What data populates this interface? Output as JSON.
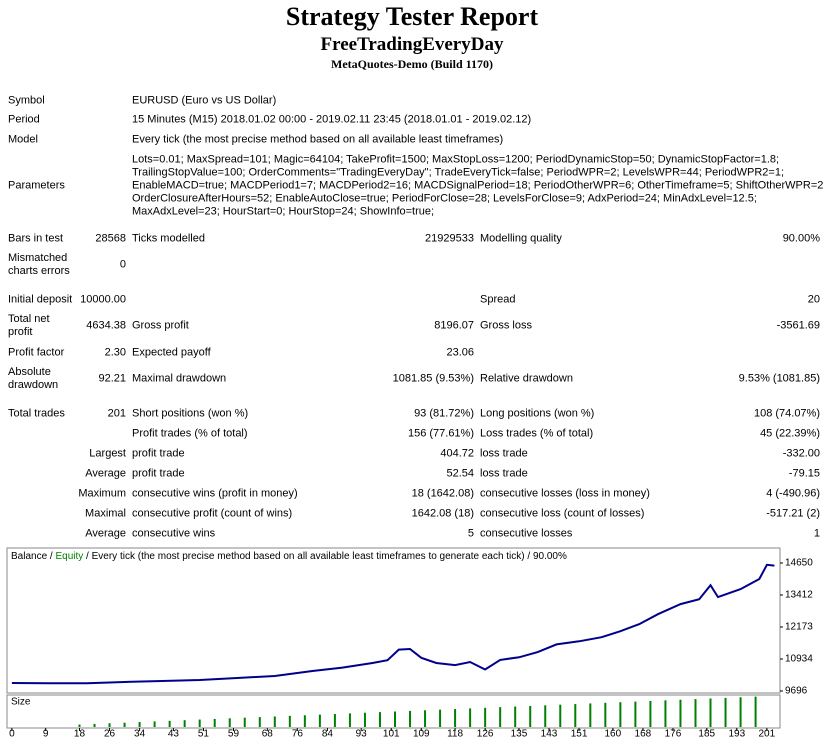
{
  "header": {
    "title": "Strategy Tester Report",
    "subtitle": "FreeTradingEveryDay",
    "build": "MetaQuotes-Demo (Build 1170)"
  },
  "rows": [
    [
      "Symbol",
      "EURUSD (Euro vs US Dollar)"
    ],
    [
      "Period",
      "15 Minutes (M15) 2018.01.02 00:00 - 2019.02.11 23:45 (2018.01.01 - 2019.02.12)"
    ],
    [
      "Model",
      "Every tick (the most precise method based on all available least timeframes)"
    ],
    [
      "Parameters",
      "Lots=0.01; MaxSpread=101; Magic=64104; TakeProfit=1500; MaxStopLoss=1200; PeriodDynamicStop=50; DynamicStopFactor=1.8;",
      "TrailingStopValue=100; OrderComments=\"TradingEveryDay\"; TradeEveryTick=false; PeriodWPR=2; LevelsWPR=44; PeriodWPR2=1;",
      "EnableMACD=true; MACDPeriod1=7; MACDPeriod2=16; MACDSignalPeriod=18; PeriodOtherWPR=6; OtherTimeframe=5; ShiftOtherWPR=2;",
      "OrderClosureAfterHours=52; EnableAutoClose=true; PeriodForClose=28; LevelsForClose=9; AdxPeriod=24; MinAdxLevel=12.5;",
      "MaxAdxLevel=23; HourStart=0; HourStop=24; ShowInfo=true;"
    ],
    [
      "Bars in test",
      "28568",
      "Ticks modelled",
      "21929533",
      "Modelling quality",
      "90.00%"
    ],
    [
      "Mismatched charts errors",
      "0"
    ],
    [
      "Initial deposit",
      "10000.00",
      "Spread",
      "20"
    ],
    [
      "Total net profit",
      "4634.38",
      "Gross profit",
      "8196.07",
      "Gross loss",
      "-3561.69"
    ],
    [
      "Profit factor",
      "2.30",
      "Expected payoff",
      "23.06"
    ],
    [
      "Absolute drawdown",
      "92.21",
      "Maximal drawdown",
      "1081.85 (9.53%)",
      "Relative drawdown",
      "9.53% (1081.85)"
    ],
    [
      "Total trades",
      "201",
      "Short positions (won %)",
      "93 (81.72%)",
      "Long positions (won %)",
      "108 (74.07%)"
    ],
    [
      "Profit trades (% of total)",
      "156 (77.61%)",
      "Loss trades (% of total)",
      "45 (22.39%)"
    ],
    [
      "Largest",
      "profit trade",
      "404.72",
      "loss trade",
      "-332.00"
    ],
    [
      "Average",
      "profit trade",
      "52.54",
      "loss trade",
      "-79.15"
    ],
    [
      "Maximum",
      "consecutive wins (profit in money)",
      "18 (1642.08)",
      "consecutive losses (loss in money)",
      "4 (-490.96)"
    ],
    [
      "Maximal",
      "consecutive profit (count of wins)",
      "1642.08 (18)",
      "consecutive loss (count of losses)",
      "-517.21 (2)"
    ],
    [
      "Average",
      "consecutive wins",
      "5",
      "consecutive losses",
      "1"
    ]
  ],
  "chart": {
    "type": "line",
    "legend": [
      "Balance",
      "Equity"
    ],
    "separator": " / ",
    "model": "Every tick (the most precise method based on all available least timeframes to generate each tick)",
    "quality": "90.00%",
    "color": "#00008b",
    "equity_color": "#008000",
    "x": [
      0,
      10,
      20,
      30,
      40,
      50,
      60,
      70,
      80,
      88,
      96,
      100,
      103,
      106,
      109,
      113,
      118,
      122,
      126,
      130,
      135,
      140,
      145,
      151,
      157,
      162,
      167,
      172,
      178,
      183,
      186,
      188,
      194,
      199,
      201,
      203
    ],
    "values": [
      10006,
      10000,
      10000,
      10045,
      10083,
      10122,
      10199,
      10277,
      10470,
      10600,
      10780,
      10890,
      11300,
      11320,
      10980,
      10780,
      10700,
      10820,
      10530,
      10900,
      11000,
      11200,
      11500,
      11620,
      11780,
      12010,
      12280,
      12670,
      13060,
      13250,
      13790,
      13330,
      13640,
      14030,
      14580,
      14550
    ],
    "xlim": [
      -1.3,
      204.5
    ],
    "ylim": [
      9619,
      15230
    ],
    "yticks": [
      9696,
      10934,
      12173,
      13412,
      14650
    ],
    "xticks": [
      0,
      9,
      18,
      26,
      34,
      43,
      51,
      59,
      68,
      76,
      84,
      93,
      101,
      109,
      118,
      126,
      135,
      143,
      151,
      160,
      168,
      176,
      185,
      193,
      201
    ],
    "size_label": "Size",
    "size_color": "#008000",
    "size_lim": [
      0,
      1
    ],
    "size_x": [
      18,
      22,
      26,
      30,
      34,
      38,
      42,
      46,
      50,
      54,
      58,
      62,
      66,
      70,
      74,
      78,
      82,
      86,
      90,
      94,
      98,
      102,
      106,
      110,
      114,
      118,
      122,
      126,
      130,
      134,
      138,
      142,
      146,
      150,
      154,
      158,
      162,
      166,
      170,
      174,
      178,
      182,
      186,
      190,
      194,
      198
    ],
    "size_values": [
      0.08,
      0.1,
      0.12,
      0.14,
      0.16,
      0.18,
      0.2,
      0.22,
      0.24,
      0.26,
      0.28,
      0.3,
      0.32,
      0.34,
      0.36,
      0.38,
      0.4,
      0.42,
      0.44,
      0.46,
      0.48,
      0.5,
      0.52,
      0.54,
      0.56,
      0.58,
      0.6,
      0.62,
      0.64,
      0.66,
      0.68,
      0.7,
      0.72,
      0.74,
      0.76,
      0.78,
      0.8,
      0.82,
      0.84,
      0.86,
      0.88,
      0.9,
      0.92,
      0.94,
      0.96,
      0.98
    ]
  }
}
